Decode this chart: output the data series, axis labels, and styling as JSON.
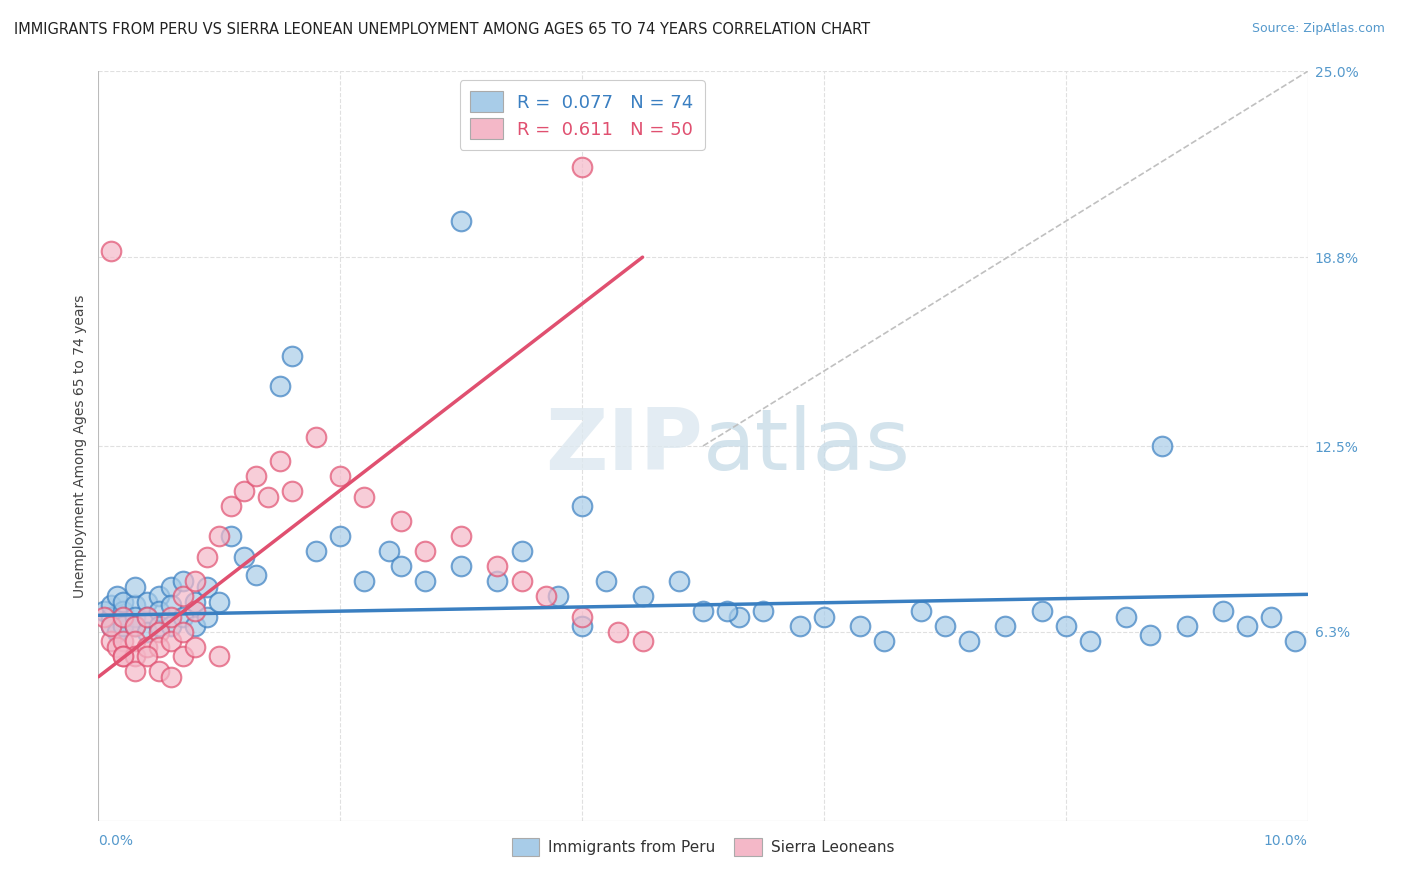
{
  "title": "IMMIGRANTS FROM PERU VS SIERRA LEONEAN UNEMPLOYMENT AMONG AGES 65 TO 74 YEARS CORRELATION CHART",
  "source": "Source: ZipAtlas.com",
  "ylabel": "Unemployment Among Ages 65 to 74 years",
  "xlim": [
    0.0,
    0.1
  ],
  "ylim": [
    0.0,
    0.25
  ],
  "ytick_labels_right": [
    "25.0%",
    "18.8%",
    "12.5%",
    "6.3%",
    ""
  ],
  "yticks_right": [
    0.25,
    0.188,
    0.125,
    0.063,
    0.0
  ],
  "color_blue": "#a8cce8",
  "color_pink": "#f4b8c8",
  "color_blue_line": "#3a7fc1",
  "color_pink_line": "#e05070",
  "color_gray_dashed": "#c0c0c0",
  "color_grid": "#e0e0e0",
  "blue_x": [
    0.0005,
    0.001,
    0.001,
    0.001,
    0.0015,
    0.0015,
    0.002,
    0.002,
    0.002,
    0.002,
    0.003,
    0.003,
    0.003,
    0.003,
    0.004,
    0.004,
    0.004,
    0.005,
    0.005,
    0.005,
    0.006,
    0.006,
    0.006,
    0.007,
    0.007,
    0.008,
    0.008,
    0.009,
    0.009,
    0.01,
    0.011,
    0.012,
    0.013,
    0.015,
    0.016,
    0.018,
    0.02,
    0.022,
    0.024,
    0.025,
    0.027,
    0.03,
    0.033,
    0.035,
    0.038,
    0.04,
    0.042,
    0.045,
    0.048,
    0.05,
    0.053,
    0.055,
    0.058,
    0.06,
    0.063,
    0.065,
    0.068,
    0.07,
    0.072,
    0.075,
    0.078,
    0.08,
    0.082,
    0.085,
    0.087,
    0.09,
    0.093,
    0.095,
    0.097,
    0.099,
    0.03,
    0.04,
    0.052,
    0.088
  ],
  "blue_y": [
    0.07,
    0.068,
    0.072,
    0.065,
    0.075,
    0.063,
    0.07,
    0.068,
    0.073,
    0.065,
    0.072,
    0.068,
    0.065,
    0.078,
    0.073,
    0.068,
    0.063,
    0.075,
    0.07,
    0.065,
    0.078,
    0.065,
    0.072,
    0.08,
    0.068,
    0.073,
    0.065,
    0.078,
    0.068,
    0.073,
    0.095,
    0.088,
    0.082,
    0.145,
    0.155,
    0.09,
    0.095,
    0.08,
    0.09,
    0.085,
    0.08,
    0.085,
    0.08,
    0.09,
    0.075,
    0.065,
    0.08,
    0.075,
    0.08,
    0.07,
    0.068,
    0.07,
    0.065,
    0.068,
    0.065,
    0.06,
    0.07,
    0.065,
    0.06,
    0.065,
    0.07,
    0.065,
    0.06,
    0.068,
    0.062,
    0.065,
    0.07,
    0.065,
    0.068,
    0.06,
    0.2,
    0.105,
    0.07,
    0.125
  ],
  "pink_x": [
    0.0005,
    0.001,
    0.001,
    0.0015,
    0.002,
    0.002,
    0.002,
    0.003,
    0.003,
    0.003,
    0.004,
    0.004,
    0.005,
    0.005,
    0.006,
    0.006,
    0.007,
    0.007,
    0.008,
    0.008,
    0.009,
    0.01,
    0.011,
    0.012,
    0.013,
    0.014,
    0.015,
    0.016,
    0.018,
    0.02,
    0.022,
    0.025,
    0.027,
    0.03,
    0.033,
    0.035,
    0.037,
    0.04,
    0.043,
    0.045,
    0.001,
    0.002,
    0.003,
    0.004,
    0.005,
    0.006,
    0.007,
    0.008,
    0.01,
    0.04
  ],
  "pink_y": [
    0.068,
    0.06,
    0.065,
    0.058,
    0.068,
    0.06,
    0.055,
    0.065,
    0.06,
    0.055,
    0.068,
    0.058,
    0.063,
    0.058,
    0.068,
    0.06,
    0.075,
    0.063,
    0.08,
    0.07,
    0.088,
    0.095,
    0.105,
    0.11,
    0.115,
    0.108,
    0.12,
    0.11,
    0.128,
    0.115,
    0.108,
    0.1,
    0.09,
    0.095,
    0.085,
    0.08,
    0.075,
    0.068,
    0.063,
    0.06,
    0.19,
    0.055,
    0.05,
    0.055,
    0.05,
    0.048,
    0.055,
    0.058,
    0.055,
    0.218
  ],
  "blue_line_x": [
    0.0,
    0.1
  ],
  "blue_line_y": [
    0.0685,
    0.0755
  ],
  "pink_line_x": [
    0.0,
    0.045
  ],
  "pink_line_y": [
    0.048,
    0.188
  ],
  "diag_line_x": [
    0.05,
    0.1
  ],
  "diag_line_y": [
    0.125,
    0.25
  ]
}
